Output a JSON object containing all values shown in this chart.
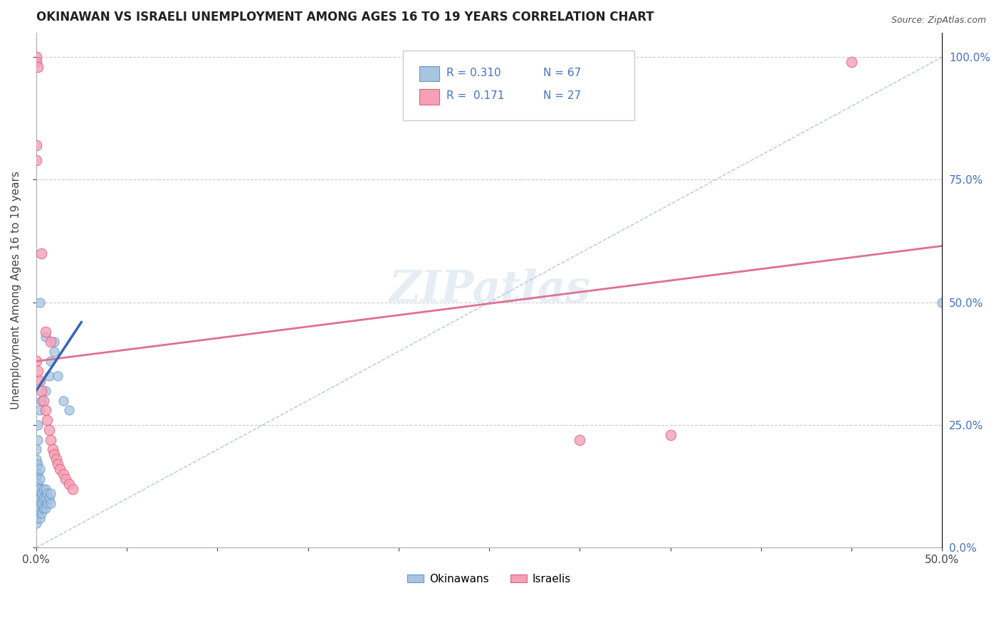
{
  "title": "OKINAWAN VS ISRAELI UNEMPLOYMENT AMONG AGES 16 TO 19 YEARS CORRELATION CHART",
  "source": "Source: ZipAtlas.com",
  "ylabel": "Unemployment Among Ages 16 to 19 years",
  "xlim": [
    0.0,
    0.5
  ],
  "ylim": [
    0.0,
    1.05
  ],
  "x_tick_positions": [
    0.0,
    0.05,
    0.1,
    0.15,
    0.2,
    0.25,
    0.3,
    0.35,
    0.4,
    0.45,
    0.5
  ],
  "x_tick_labels": [
    "0.0%",
    "",
    "",
    "",
    "",
    "",
    "",
    "",
    "",
    "",
    "50.0%"
  ],
  "y_tick_positions": [
    0.0,
    0.25,
    0.5,
    0.75,
    1.0
  ],
  "y_tick_labels": [
    "0.0%",
    "25.0%",
    "50.0%",
    "75.0%",
    "100.0%"
  ],
  "okinawan_color": "#a8c4e0",
  "okinawan_edge": "#6699cc",
  "israeli_color": "#f4a0b5",
  "israeli_edge": "#e06080",
  "trend_okinawan_color": "#3366bb",
  "trend_israeli_color": "#e07090",
  "diag_color": "#99bbdd",
  "watermark": "ZIPatlas",
  "legend_r_okinawan": "R = 0.310",
  "legend_n_okinawan": "N = 67",
  "legend_r_israeli": "R =  0.171",
  "legend_n_israeli": "N = 27",
  "israeli_trend_x0": 0.0,
  "israeli_trend_y0": 0.38,
  "israeli_trend_x1": 0.5,
  "israeli_trend_y1": 0.615,
  "okinawan_trend_x0": 0.0,
  "okinawan_trend_y0": 0.32,
  "okinawan_trend_x1": 0.025,
  "okinawan_trend_y1": 0.46
}
